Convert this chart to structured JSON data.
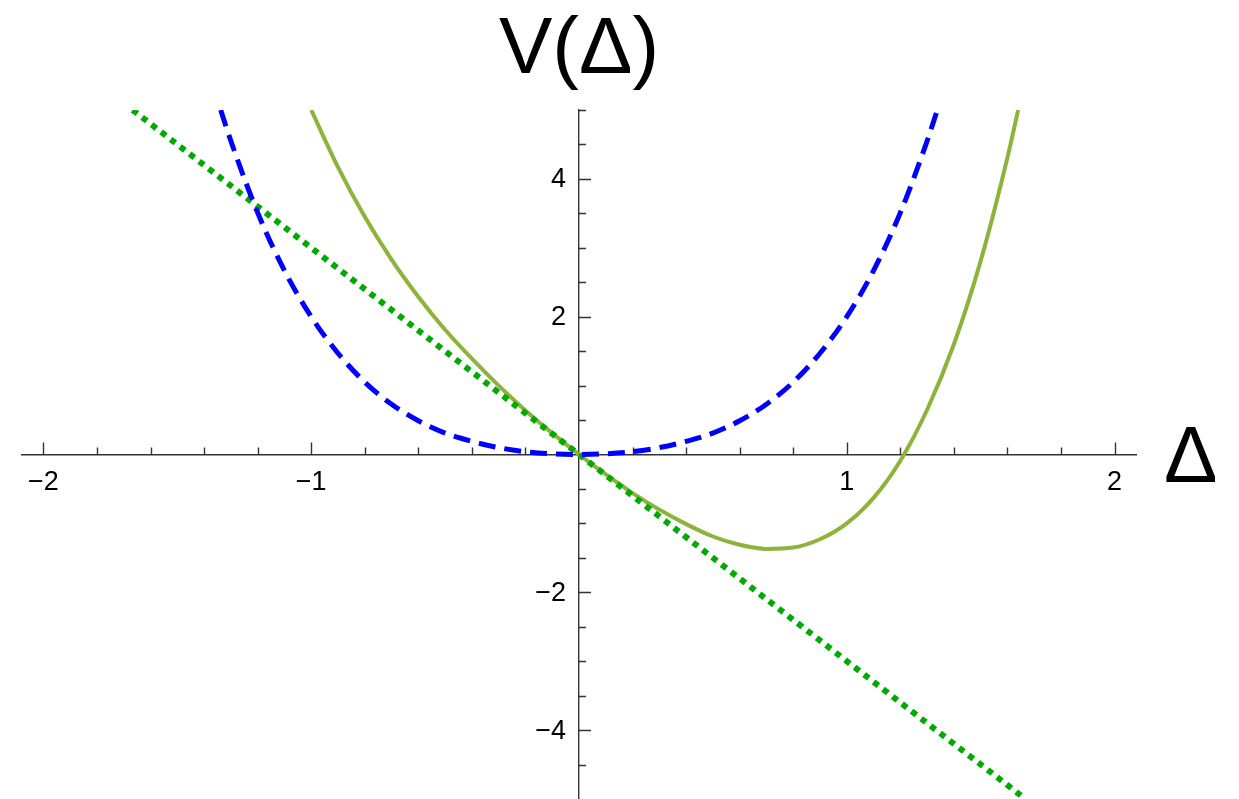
{
  "chart_data": {
    "type": "line",
    "xlabel": "Δ",
    "ylabel": "V(Δ)",
    "xlim": [
      -2.08,
      2.08
    ],
    "ylim": [
      -5,
      5
    ],
    "xticks": [
      {
        "value": -2,
        "label": "−2"
      },
      {
        "value": -1.8,
        "label": null
      },
      {
        "value": -1.6,
        "label": null
      },
      {
        "value": -1.4,
        "label": null
      },
      {
        "value": -1.2,
        "label": null
      },
      {
        "value": -1,
        "label": "−1"
      },
      {
        "value": -0.8,
        "label": null
      },
      {
        "value": -0.6,
        "label": null
      },
      {
        "value": -0.4,
        "label": null
      },
      {
        "value": -0.2,
        "label": null
      },
      {
        "value": 0.2,
        "label": null
      },
      {
        "value": 0.4,
        "label": null
      },
      {
        "value": 0.6,
        "label": null
      },
      {
        "value": 0.8,
        "label": null
      },
      1,
      {
        "value": 1.2,
        "label": null
      },
      {
        "value": 1.4,
        "label": null
      },
      {
        "value": 1.6,
        "label": null
      },
      {
        "value": 1.8,
        "label": null
      },
      2
    ],
    "yticks": [
      {
        "value": -4.5,
        "label": null
      },
      {
        "value": -4,
        "label": "−4"
      },
      {
        "value": -3.5,
        "label": null
      },
      {
        "value": -3,
        "label": null
      },
      {
        "value": -2.5,
        "label": null
      },
      {
        "value": -2,
        "label": "−2"
      },
      {
        "value": -1.5,
        "label": null
      },
      {
        "value": -1,
        "label": null
      },
      {
        "value": -0.5,
        "label": null
      },
      {
        "value": 0.5,
        "label": null
      },
      {
        "value": 1,
        "label": null
      },
      {
        "value": 1.5,
        "label": null
      },
      2,
      {
        "value": 2.5,
        "label": null
      },
      {
        "value": 3,
        "label": null
      },
      {
        "value": 3.5,
        "label": null
      },
      4,
      {
        "value": 4.5,
        "label": null
      },
      {
        "value": 5,
        "label": null
      }
    ],
    "grid": false,
    "legend": false,
    "marker": "none",
    "series": [
      {
        "color": "#0000ff",
        "line_style": "dashed",
        "x": [
          -1.338,
          -1.3,
          -1.2,
          -1.1,
          -1,
          -0.9,
          -0.8,
          -0.7,
          -0.6,
          -0.5,
          -0.4,
          -0.3,
          -0.2,
          -0.1,
          0,
          0.1,
          0.2,
          0.3,
          0.4,
          0.5,
          0.6,
          0.7,
          0.8,
          0.9,
          1,
          1.1,
          1.2,
          1.3,
          1.338
        ],
        "values": [
          5,
          4.55,
          3.51,
          2.67,
          2,
          1.47,
          1.05,
          0.73,
          0.49,
          0.31,
          0.19,
          0.1,
          0.04,
          0.01,
          0,
          0.01,
          0.04,
          0.1,
          0.19,
          0.31,
          0.49,
          0.73,
          1.05,
          1.47,
          2,
          2.67,
          3.51,
          4.55,
          5
        ]
      },
      {
        "color": "#00aa00",
        "line_style": "dotted",
        "x": [
          -1.667,
          0,
          1.667
        ],
        "values": [
          5,
          0,
          -5
        ]
      },
      {
        "color": "#8db33a",
        "line_style": "solid",
        "x": [
          -1,
          -0.9,
          -0.8,
          -0.7,
          -0.6,
          -0.5,
          -0.4,
          -0.3,
          -0.2,
          -0.1,
          0,
          0.1,
          0.2,
          0.3,
          0.4,
          0.5,
          0.6,
          0.7,
          0.8,
          0.9,
          1,
          1.1,
          1.2,
          1.3,
          1.4,
          1.5,
          1.6,
          1.64
        ],
        "values": [
          5,
          4.17,
          3.45,
          2.83,
          2.29,
          1.81,
          1.39,
          1,
          0.64,
          0.31,
          0,
          -0.29,
          -0.56,
          -0.8,
          -1.01,
          -1.19,
          -1.31,
          -1.37,
          -1.35,
          -1.23,
          -1,
          -0.63,
          -0.09,
          0.65,
          1.6,
          2.81,
          4.31,
          5
        ]
      }
    ]
  }
}
